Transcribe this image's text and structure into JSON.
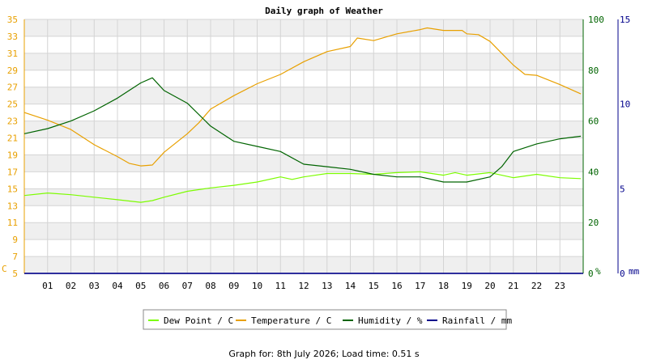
{
  "chart_data": {
    "type": "line",
    "title": "Daily graph of Weather",
    "footer": "Graph for: 8th July 2026; Load time: 0.51 s",
    "x_tick_labels": [
      "01",
      "02",
      "03",
      "04",
      "05",
      "06",
      "07",
      "08",
      "09",
      "10",
      "11",
      "12",
      "13",
      "14",
      "15",
      "16",
      "17",
      "18",
      "19",
      "20",
      "21",
      "22",
      "23"
    ],
    "x_range_hours": [
      0,
      24
    ],
    "left_axis": {
      "unit_label": "C",
      "range": [
        5,
        35
      ],
      "ticks": [
        5,
        7,
        9,
        11,
        13,
        15,
        17,
        19,
        21,
        23,
        25,
        27,
        29,
        31,
        33,
        35
      ],
      "color": "#e8a000"
    },
    "right_axis_1": {
      "unit_label": "%",
      "range": [
        0,
        100
      ],
      "ticks": [
        0,
        20,
        40,
        60,
        80,
        100
      ],
      "color": "#006400"
    },
    "right_axis_2": {
      "unit_label": "mm",
      "range": [
        0,
        15
      ],
      "ticks": [
        0,
        5,
        10,
        15
      ],
      "color": "#00008b"
    },
    "grid": true,
    "legend_position": "bottom",
    "series": [
      {
        "name": "Dew Point / C",
        "color": "#7cfc00",
        "axis": "left",
        "points": [
          [
            0,
            14.2
          ],
          [
            1,
            14.5
          ],
          [
            2,
            14.3
          ],
          [
            3,
            14.0
          ],
          [
            4,
            13.7
          ],
          [
            5,
            13.4
          ],
          [
            5.5,
            13.6
          ],
          [
            6,
            14.0
          ],
          [
            7,
            14.7
          ],
          [
            8,
            15.1
          ],
          [
            9,
            15.4
          ],
          [
            10,
            15.8
          ],
          [
            11,
            16.4
          ],
          [
            11.5,
            16.1
          ],
          [
            12,
            16.4
          ],
          [
            13,
            16.8
          ],
          [
            14,
            16.8
          ],
          [
            15,
            16.7
          ],
          [
            16,
            16.9
          ],
          [
            17,
            17.0
          ],
          [
            17.5,
            16.8
          ],
          [
            18,
            16.6
          ],
          [
            18.5,
            16.9
          ],
          [
            19,
            16.6
          ],
          [
            20,
            16.9
          ],
          [
            21,
            16.3
          ],
          [
            22,
            16.7
          ],
          [
            23,
            16.3
          ],
          [
            23.9,
            16.2
          ]
        ]
      },
      {
        "name": "Temperature / C",
        "color": "#e8a000",
        "axis": "left",
        "points": [
          [
            0,
            24.0
          ],
          [
            1,
            23.1
          ],
          [
            2,
            22.0
          ],
          [
            3,
            20.2
          ],
          [
            4,
            18.8
          ],
          [
            4.5,
            18.0
          ],
          [
            5,
            17.7
          ],
          [
            5.5,
            17.8
          ],
          [
            6,
            19.3
          ],
          [
            7,
            21.5
          ],
          [
            7.5,
            22.8
          ],
          [
            8,
            24.4
          ],
          [
            9,
            26.0
          ],
          [
            10,
            27.4
          ],
          [
            11,
            28.5
          ],
          [
            12,
            30.0
          ],
          [
            13,
            31.2
          ],
          [
            14,
            31.8
          ],
          [
            14.3,
            32.8
          ],
          [
            15,
            32.5
          ],
          [
            16,
            33.3
          ],
          [
            17,
            33.8
          ],
          [
            17.3,
            34.0
          ],
          [
            18,
            33.7
          ],
          [
            18.8,
            33.7
          ],
          [
            19,
            33.3
          ],
          [
            19.5,
            33.2
          ],
          [
            20,
            32.4
          ],
          [
            20.5,
            31.0
          ],
          [
            21,
            29.6
          ],
          [
            21.5,
            28.5
          ],
          [
            22,
            28.4
          ],
          [
            23,
            27.3
          ],
          [
            23.9,
            26.2
          ]
        ]
      },
      {
        "name": "Humidity / %",
        "color": "#006400",
        "axis": "right_1",
        "points": [
          [
            0,
            55
          ],
          [
            1,
            57
          ],
          [
            2,
            60
          ],
          [
            3,
            64
          ],
          [
            4,
            69
          ],
          [
            5,
            75
          ],
          [
            5.5,
            77
          ],
          [
            6,
            72
          ],
          [
            7,
            67
          ],
          [
            8,
            58
          ],
          [
            9,
            52
          ],
          [
            10,
            50
          ],
          [
            11,
            48
          ],
          [
            12,
            43
          ],
          [
            13,
            42
          ],
          [
            14,
            41
          ],
          [
            15,
            39
          ],
          [
            16,
            38
          ],
          [
            17,
            38
          ],
          [
            18,
            36
          ],
          [
            19,
            36
          ],
          [
            20,
            38
          ],
          [
            20.5,
            42
          ],
          [
            21,
            48
          ],
          [
            22,
            51
          ],
          [
            23,
            53
          ],
          [
            23.9,
            54
          ]
        ]
      },
      {
        "name": "Rainfall / mm",
        "color": "#00008b",
        "axis": "right_2",
        "points": [
          [
            0,
            0
          ],
          [
            23.9,
            0
          ]
        ]
      }
    ]
  }
}
